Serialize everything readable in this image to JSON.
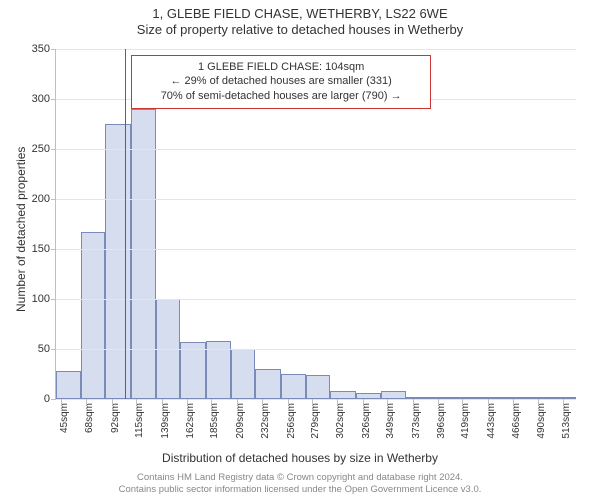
{
  "title_line1": "1, GLEBE FIELD CHASE, WETHERBY, LS22 6WE",
  "title_line2": "Size of property relative to detached houses in Wetherby",
  "y_axis_title": "Number of detached properties",
  "x_axis_title": "Distribution of detached houses by size in Wetherby",
  "chart": {
    "type": "histogram",
    "background_color": "#ffffff",
    "grid_color": "#e5e5e5",
    "axis_color": "#bfbfbf",
    "bar_fill": "#d6ddee",
    "bar_border": "#7b8bb7",
    "reference_line_color": "#cc3333",
    "info_border_color": "#cc3333",
    "yrange": [
      0,
      350
    ],
    "ytick_step": 50,
    "yticks": [
      0,
      50,
      100,
      150,
      200,
      250,
      300,
      350
    ],
    "xrange_sqm": [
      40,
      525
    ],
    "x_labels": [
      "45sqm",
      "68sqm",
      "92sqm",
      "115sqm",
      "139sqm",
      "162sqm",
      "185sqm",
      "209sqm",
      "232sqm",
      "256sqm",
      "279sqm",
      "302sqm",
      "326sqm",
      "349sqm",
      "373sqm",
      "396sqm",
      "419sqm",
      "443sqm",
      "466sqm",
      "490sqm",
      "513sqm"
    ],
    "x_label_positions_sqm": [
      45,
      68,
      92,
      115,
      139,
      162,
      185,
      209,
      232,
      256,
      279,
      302,
      326,
      349,
      373,
      396,
      419,
      443,
      466,
      490,
      513
    ],
    "bars": [
      {
        "start_sqm": 40,
        "end_sqm": 63,
        "value": 28
      },
      {
        "start_sqm": 63,
        "end_sqm": 86,
        "value": 167
      },
      {
        "start_sqm": 86,
        "end_sqm": 110,
        "value": 275
      },
      {
        "start_sqm": 110,
        "end_sqm": 133,
        "value": 290
      },
      {
        "start_sqm": 133,
        "end_sqm": 156,
        "value": 100
      },
      {
        "start_sqm": 156,
        "end_sqm": 180,
        "value": 57
      },
      {
        "start_sqm": 180,
        "end_sqm": 203,
        "value": 58
      },
      {
        "start_sqm": 203,
        "end_sqm": 226,
        "value": 50
      },
      {
        "start_sqm": 226,
        "end_sqm": 250,
        "value": 30
      },
      {
        "start_sqm": 250,
        "end_sqm": 273,
        "value": 25
      },
      {
        "start_sqm": 273,
        "end_sqm": 296,
        "value": 24
      },
      {
        "start_sqm": 296,
        "end_sqm": 320,
        "value": 8
      },
      {
        "start_sqm": 320,
        "end_sqm": 343,
        "value": 6
      },
      {
        "start_sqm": 343,
        "end_sqm": 366,
        "value": 8
      },
      {
        "start_sqm": 366,
        "end_sqm": 390,
        "value": 2
      },
      {
        "start_sqm": 390,
        "end_sqm": 413,
        "value": 2
      },
      {
        "start_sqm": 413,
        "end_sqm": 436,
        "value": 2
      },
      {
        "start_sqm": 436,
        "end_sqm": 460,
        "value": 2
      },
      {
        "start_sqm": 460,
        "end_sqm": 483,
        "value": 1
      },
      {
        "start_sqm": 483,
        "end_sqm": 506,
        "value": 2
      },
      {
        "start_sqm": 506,
        "end_sqm": 525,
        "value": 1
      }
    ],
    "reference_sqm": 104,
    "info_box": {
      "line1": "1 GLEBE FIELD CHASE: 104sqm",
      "line2": "← 29% of detached houses are smaller (331)",
      "line3": "70% of semi-detached houses are larger (790) →",
      "left_sqm": 110,
      "width_sqm": 280
    },
    "title_fontsize": 13,
    "axis_label_fontsize": 12,
    "tick_fontsize": 11
  },
  "footer_line1": "Contains HM Land Registry data © Crown copyright and database right 2024.",
  "footer_line2": "Contains public sector information licensed under the Open Government Licence v3.0."
}
